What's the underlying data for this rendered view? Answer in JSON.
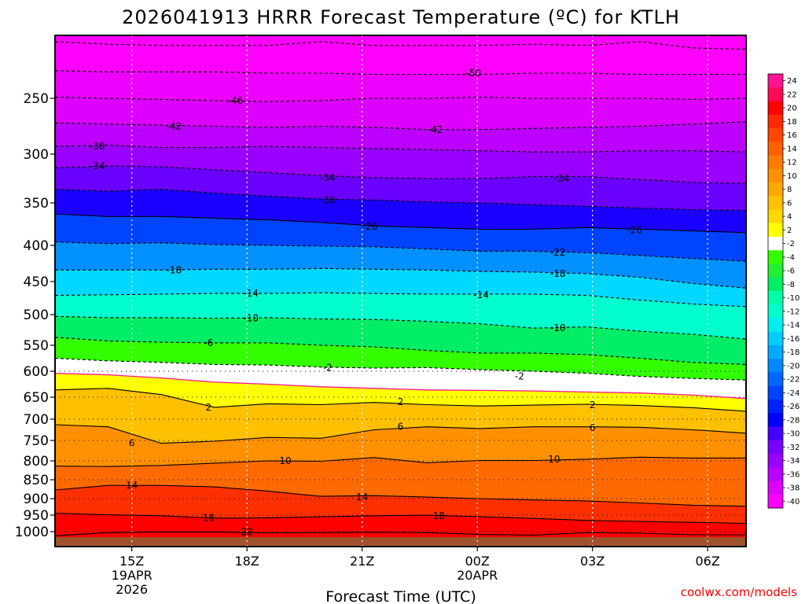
{
  "chart_data": {
    "type": "heatmap",
    "title": "2026041913 HRRR Forecast Temperature (ºC) for KTLH",
    "xlabel": "Forecast Time (UTC)",
    "ylabel": "",
    "credit": "coolwx.com/models",
    "x_ticks": [
      {
        "label": "15Z",
        "sub1": "19APR",
        "sub2": "2026"
      },
      {
        "label": "18Z",
        "sub1": "",
        "sub2": ""
      },
      {
        "label": "21Z",
        "sub1": "",
        "sub2": ""
      },
      {
        "label": "00Z",
        "sub1": "20APR",
        "sub2": ""
      },
      {
        "label": "03Z",
        "sub1": "",
        "sub2": ""
      },
      {
        "label": "06Z",
        "sub1": "",
        "sub2": ""
      }
    ],
    "x_tick_hours": [
      2,
      5,
      8,
      11,
      14,
      17
    ],
    "x_range_hours": [
      0,
      18
    ],
    "y_ticks": [
      "250",
      "300",
      "350",
      "400",
      "450",
      "500",
      "550",
      "600",
      "650",
      "700",
      "750",
      "800",
      "850",
      "900",
      "950",
      "1000"
    ],
    "y_tick_hpa": [
      250,
      300,
      350,
      400,
      450,
      500,
      550,
      600,
      650,
      700,
      750,
      800,
      850,
      900,
      950,
      1000
    ],
    "y_range_hpa": [
      200,
      1025
    ],
    "colorbar_labels": [
      "24",
      "22",
      "20",
      "18",
      "16",
      "14",
      "12",
      "10",
      "8",
      "6",
      "4",
      "2",
      "-2",
      "-4",
      "-6",
      "-8",
      "-10",
      "-12",
      "-14",
      "-16",
      "-18",
      "-20",
      "-22",
      "-24",
      "-26",
      "-28",
      "-30",
      "-32",
      "-34",
      "-36",
      "-38",
      "-40"
    ],
    "colorbar_colors": [
      "#ff1493",
      "#ff0a55",
      "#ff0000",
      "#ff2a00",
      "#ff4600",
      "#ff6000",
      "#ff7a00",
      "#ff9000",
      "#ffa800",
      "#ffc000",
      "#ffd800",
      "#ffff00",
      "#ffffff",
      "#33ff00",
      "#22ee33",
      "#00ee66",
      "#00ffaa",
      "#00ffcc",
      "#00eeee",
      "#00ccff",
      "#00aaff",
      "#0088ff",
      "#0066ff",
      "#0044ff",
      "#0022ff",
      "#0000ff",
      "#4400ff",
      "#7700ff",
      "#9900ff",
      "#bb00ff",
      "#dd00ff",
      "#ff00ff"
    ],
    "contours": [
      {
        "label": "-50",
        "style": "dashed",
        "color": "#000000",
        "hpa": [
          205,
          207,
          208,
          208,
          208,
          205,
          208,
          208,
          208,
          207,
          208,
          205,
          210,
          211
        ]
      },
      {
        "label": "-50",
        "style": "dashed",
        "color": "#000000",
        "hpa": [
          228,
          229,
          229,
          229,
          230,
          230,
          231,
          231,
          231,
          230,
          230,
          231,
          231,
          231
        ]
      },
      {
        "label": "-46",
        "style": "dashed",
        "color": "#000000",
        "hpa": [
          249,
          250,
          251,
          252,
          253,
          252,
          250,
          250,
          249,
          250,
          250,
          250,
          251,
          250
        ]
      },
      {
        "label": "-42",
        "style": "dashed",
        "color": "#000000",
        "hpa": [
          272,
          273,
          274,
          275,
          276,
          275,
          276,
          278,
          278,
          277,
          276,
          275,
          273,
          271
        ]
      },
      {
        "label": "-38",
        "style": "dashed",
        "color": "#000000",
        "hpa": [
          293,
          292,
          294,
          294,
          293,
          294,
          295,
          296,
          297,
          298,
          298,
          297,
          297,
          298
        ]
      },
      {
        "label": "-34",
        "style": "dashed",
        "color": "#000000",
        "hpa": [
          314,
          312,
          313,
          316,
          319,
          322,
          324,
          325,
          325,
          323,
          323,
          326,
          329,
          330
        ]
      },
      {
        "label": "-30",
        "style": "dashed",
        "color": "#000000",
        "hpa": [
          336,
          338,
          336,
          340,
          343,
          346,
          347,
          349,
          350,
          352,
          354,
          356,
          358,
          359
        ]
      },
      {
        "label": "-26",
        "style": "solid",
        "color": "#000000",
        "hpa": [
          363,
          366,
          366,
          368,
          370,
          373,
          377,
          379,
          381,
          381,
          379,
          381,
          383,
          385
        ]
      },
      {
        "label": "-22",
        "style": "dashed",
        "color": "#000000",
        "hpa": [
          396,
          398,
          397,
          399,
          400,
          401,
          402,
          405,
          408,
          408,
          410,
          414,
          418,
          422
        ]
      },
      {
        "label": "-18",
        "style": "dashed",
        "color": "#000000",
        "hpa": [
          434,
          434,
          434,
          433,
          433,
          432,
          433,
          434,
          436,
          437,
          439,
          444,
          453,
          460
        ]
      },
      {
        "label": "-14",
        "style": "dashed",
        "color": "#000000",
        "hpa": [
          471,
          470,
          469,
          468,
          468,
          467,
          468,
          469,
          469,
          469,
          471,
          478,
          484,
          488
        ]
      },
      {
        "label": "-10",
        "style": "dashed",
        "color": "#000000",
        "hpa": [
          503,
          505,
          505,
          506,
          505,
          507,
          508,
          511,
          515,
          522,
          520,
          527,
          532,
          540
        ]
      },
      {
        "label": "-6",
        "style": "dashed",
        "color": "#000000",
        "hpa": [
          537,
          543,
          545,
          546,
          546,
          550,
          553,
          560,
          565,
          565,
          568,
          575,
          583,
          587
        ]
      },
      {
        "label": "-2",
        "style": "dashed",
        "color": "#000000",
        "hpa": [
          575,
          580,
          583,
          587,
          588,
          592,
          594,
          593,
          597,
          600,
          604,
          610,
          614,
          617
        ]
      },
      {
        "label": "0",
        "style": "solid",
        "color": "#ff1493",
        "hpa": [
          604,
          607,
          613,
          621,
          625,
          630,
          633,
          636,
          637,
          638,
          640,
          642,
          646,
          653
        ]
      },
      {
        "label": "2",
        "style": "solid",
        "color": "#000000",
        "hpa": [
          636,
          633,
          645,
          673,
          665,
          667,
          662,
          667,
          670,
          668,
          666,
          669,
          674,
          682
        ]
      },
      {
        "label": "6",
        "style": "solid",
        "color": "#000000",
        "hpa": [
          713,
          718,
          757,
          752,
          743,
          745,
          725,
          718,
          722,
          718,
          718,
          719,
          725,
          733
        ]
      },
      {
        "label": "10",
        "style": "solid",
        "color": "#000000",
        "hpa": [
          814,
          815,
          812,
          806,
          800,
          801,
          792,
          805,
          799,
          799,
          796,
          791,
          793,
          793
        ]
      },
      {
        "label": "14",
        "style": "solid",
        "color": "#000000",
        "hpa": [
          877,
          865,
          865,
          869,
          880,
          894,
          892,
          896,
          900,
          904,
          907,
          913,
          920,
          923
        ]
      },
      {
        "label": "18",
        "style": "solid",
        "color": "#000000",
        "hpa": [
          944,
          949,
          952,
          959,
          958,
          955,
          952,
          950,
          955,
          960,
          966,
          969,
          972,
          975
        ]
      },
      {
        "label": "22",
        "style": "solid",
        "color": "#000000",
        "hpa": [
          1013,
          1003,
          1001,
          1001,
          1004,
          1003,
          1002,
          1003,
          1009,
          1011,
          1003,
          1005,
          1010,
          1010
        ]
      }
    ],
    "contour_labels": [
      {
        "text": "-50",
        "hour": 10.9,
        "hpa": 230
      },
      {
        "text": "-46",
        "hour": 4.7,
        "hpa": 252
      },
      {
        "text": "-42",
        "hour": 3.1,
        "hpa": 275
      },
      {
        "text": "-42",
        "hour": 9.9,
        "hpa": 278
      },
      {
        "text": "-38",
        "hour": 1.1,
        "hpa": 293
      },
      {
        "text": "-34",
        "hour": 1.1,
        "hpa": 312
      },
      {
        "text": "-34",
        "hour": 7.1,
        "hpa": 324
      },
      {
        "text": "-34",
        "hour": 13.2,
        "hpa": 325
      },
      {
        "text": "-30",
        "hour": 7.1,
        "hpa": 347
      },
      {
        "text": "-26",
        "hour": 8.2,
        "hpa": 378
      },
      {
        "text": "-26",
        "hour": 15.1,
        "hpa": 382
      },
      {
        "text": "-22",
        "hour": 13.1,
        "hpa": 410
      },
      {
        "text": "-18",
        "hour": 3.1,
        "hpa": 434
      },
      {
        "text": "-18",
        "hour": 13.1,
        "hpa": 439
      },
      {
        "text": "-14",
        "hour": 5.1,
        "hpa": 468
      },
      {
        "text": "-14",
        "hour": 11.1,
        "hpa": 470
      },
      {
        "text": "-10",
        "hour": 5.1,
        "hpa": 506
      },
      {
        "text": "-10",
        "hour": 13.1,
        "hpa": 522
      },
      {
        "text": "-6",
        "hour": 4.0,
        "hpa": 546
      },
      {
        "text": "-2",
        "hour": 7.1,
        "hpa": 593
      },
      {
        "text": "-2",
        "hour": 12.1,
        "hpa": 610
      },
      {
        "text": "2",
        "hour": 4.0,
        "hpa": 673
      },
      {
        "text": "2",
        "hour": 9.0,
        "hpa": 661
      },
      {
        "text": "2",
        "hour": 14.0,
        "hpa": 668
      },
      {
        "text": "6",
        "hour": 2.0,
        "hpa": 757
      },
      {
        "text": "6",
        "hour": 9.0,
        "hpa": 718
      },
      {
        "text": "6",
        "hour": 14.0,
        "hpa": 720
      },
      {
        "text": "10",
        "hour": 6.0,
        "hpa": 800
      },
      {
        "text": "10",
        "hour": 13.0,
        "hpa": 796
      },
      {
        "text": "14",
        "hour": 2.0,
        "hpa": 865
      },
      {
        "text": "14",
        "hour": 8.0,
        "hpa": 896
      },
      {
        "text": "18",
        "hour": 4.0,
        "hpa": 958
      },
      {
        "text": "18",
        "hour": 10.0,
        "hpa": 952
      },
      {
        "text": "22",
        "hour": 5.0,
        "hpa": 1001
      }
    ]
  }
}
